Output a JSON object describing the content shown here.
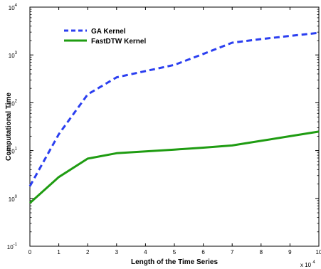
{
  "chart_data": {
    "type": "line",
    "title": "",
    "xlabel": "Length of the Time Series",
    "ylabel": "Computational Time",
    "x_multiplier_label": {
      "base": "x 10",
      "exp": "4"
    },
    "xlim": [
      0,
      10
    ],
    "ylim": [
      0.1,
      10000
    ],
    "yscale": "log",
    "grid": false,
    "legend_position": "top-left",
    "x_ticks": [
      "0",
      "1",
      "2",
      "3",
      "4",
      "5",
      "6",
      "7",
      "8",
      "9",
      "10"
    ],
    "y_ticks": [
      {
        "value": 0.1,
        "base": "10",
        "exp": "-1"
      },
      {
        "value": 1,
        "base": "10",
        "exp": "0"
      },
      {
        "value": 10,
        "base": "10",
        "exp": "1"
      },
      {
        "value": 100,
        "base": "10",
        "exp": "2"
      },
      {
        "value": 1000,
        "base": "10",
        "exp": "3"
      },
      {
        "value": 10000,
        "base": "10",
        "exp": "4"
      }
    ],
    "series": [
      {
        "name": "GA Kernel",
        "color": "#2b3ff0",
        "style": "dashed",
        "x": [
          0,
          1,
          2,
          3,
          4,
          5,
          6,
          7,
          8,
          9,
          10
        ],
        "y": [
          1.8,
          22,
          150,
          340,
          460,
          620,
          1050,
          1800,
          2150,
          2500,
          2900
        ]
      },
      {
        "name": "FastDTW Kernel",
        "color": "#1f9c12",
        "style": "solid",
        "x": [
          0,
          1,
          2,
          3,
          4,
          5,
          6,
          7,
          8,
          9,
          10
        ],
        "y": [
          0.8,
          2.8,
          6.8,
          8.8,
          9.6,
          10.5,
          11.5,
          12.8,
          16,
          20,
          25
        ]
      }
    ]
  }
}
